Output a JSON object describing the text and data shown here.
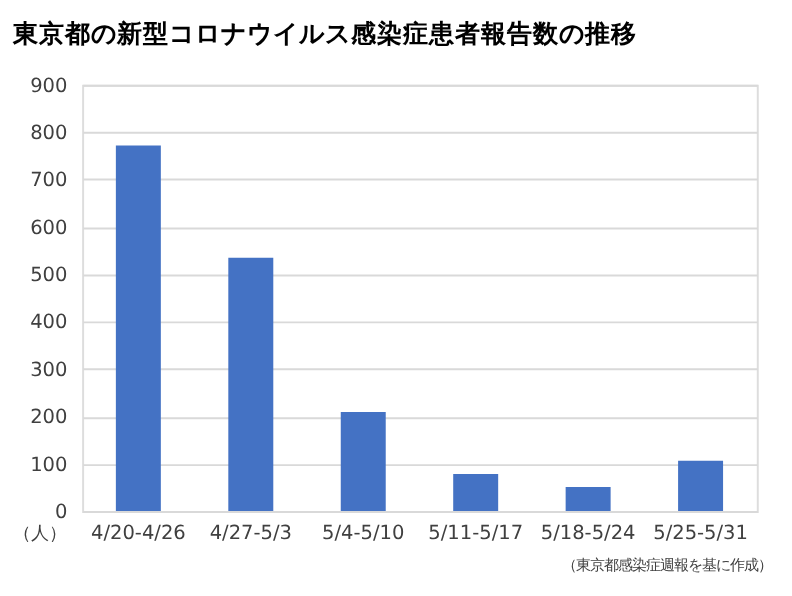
{
  "chart_data": {
    "type": "bar",
    "title": "東京都の新型コロナウイルス感染症患者報告数の推移",
    "ylabel": "（人）",
    "categories": [
      "4/20-4/26",
      "4/27-5/3",
      "5/4-5/10",
      "5/11-5/17",
      "5/18-5/24",
      "5/25-5/31"
    ],
    "values": [
      772,
      535,
      209,
      78,
      51,
      106
    ],
    "color": "#4472c4",
    "ylim": [
      0,
      900
    ],
    "yticks": [
      0,
      100,
      200,
      300,
      400,
      500,
      600,
      700,
      800,
      900
    ],
    "grid": "y",
    "annotations": [
      "（東京都感染症週報を基に作成）"
    ]
  }
}
